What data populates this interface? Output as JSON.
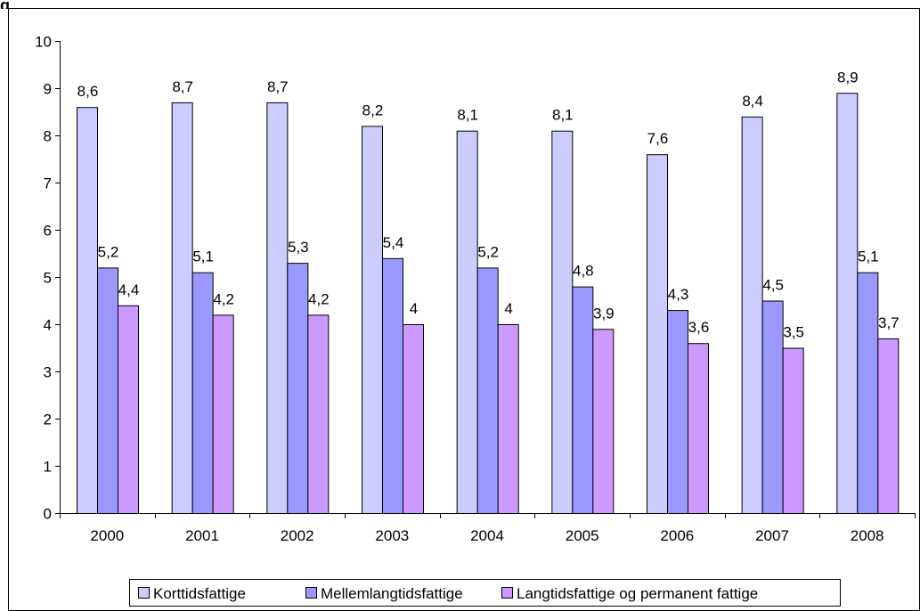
{
  "header": {
    "cut_text": "g"
  },
  "chart_data": {
    "type": "bar",
    "categories": [
      "2000",
      "2001",
      "2002",
      "2003",
      "2004",
      "2005",
      "2006",
      "2007",
      "2008"
    ],
    "series": [
      {
        "name": "Korttidsfattige",
        "color": "#ccccff",
        "values": [
          8.6,
          8.7,
          8.7,
          8.2,
          8.1,
          8.1,
          7.6,
          8.4,
          8.9
        ],
        "labels": [
          "8,6",
          "8,7",
          "8,7",
          "8,2",
          "8,1",
          "8,1",
          "7,6",
          "8,4",
          "8,9"
        ]
      },
      {
        "name": "Mellemlangtidsfattige",
        "color": "#9999ff",
        "values": [
          5.2,
          5.1,
          5.3,
          5.4,
          5.2,
          4.8,
          4.3,
          4.5,
          5.1
        ],
        "labels": [
          "5,2",
          "5,1",
          "5,3",
          "5,4",
          "5,2",
          "4,8",
          "4,3",
          "4,5",
          "5,1"
        ]
      },
      {
        "name": "Langtidsfattige og permanent fattige",
        "color": "#cc99ff",
        "values": [
          4.4,
          4.2,
          4.2,
          4.0,
          4.0,
          3.9,
          3.6,
          3.5,
          3.7
        ],
        "labels": [
          "4,4",
          "4,2",
          "4,2",
          "4",
          "4",
          "3,9",
          "3,6",
          "3,5",
          "3,7"
        ]
      }
    ],
    "ylim": [
      0,
      10
    ],
    "yticks": [
      "0",
      "1",
      "2",
      "3",
      "4",
      "5",
      "6",
      "7",
      "8",
      "9",
      "10"
    ],
    "grid": false,
    "legend": "bottom"
  }
}
